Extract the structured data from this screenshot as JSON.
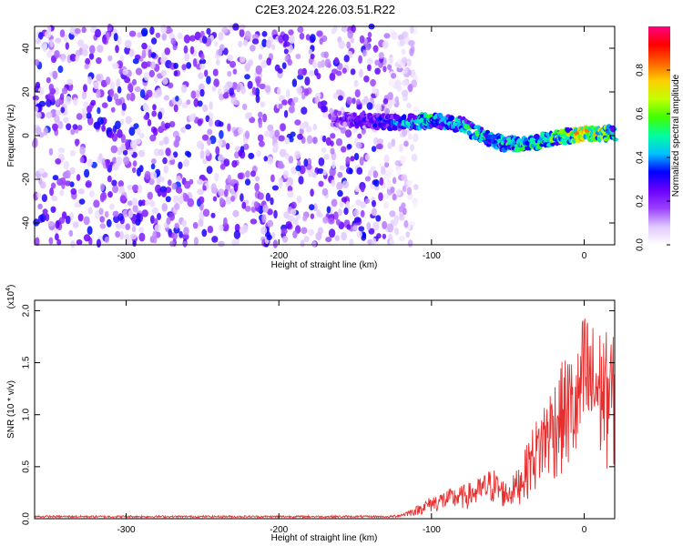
{
  "figure_title": "C2E3.2024.226.03.51.R22",
  "chart_data": [
    {
      "type": "heatmap",
      "title": "",
      "xlabel": "Height of straight line (km)",
      "ylabel": "Frequency (Hz)",
      "xlim": [
        -360,
        20
      ],
      "ylim": [
        -50,
        50
      ],
      "xticks": [
        -300,
        -200,
        -100,
        0
      ],
      "yticks": [
        -40,
        -20,
        0,
        20,
        40
      ],
      "colorbar": {
        "label": "Normalized spectral amplitude",
        "range": [
          0,
          1
        ],
        "ticks": [
          0.0,
          0.2,
          0.4,
          0.6,
          0.8
        ],
        "tick_labels": [
          "0.0",
          "0.2",
          "0.4",
          "0.6",
          "0.8"
        ],
        "colors": [
          "#ffffff",
          "#e0c8ff",
          "#9a40ff",
          "#6a00ff",
          "#0000ff",
          "#00c0ff",
          "#00ffa0",
          "#40ff00",
          "#c0ff00",
          "#ffd000",
          "#ff6000",
          "#ff0000",
          "#ff0080"
        ]
      },
      "noise_region_km": [
        -360,
        -115
      ],
      "noise_amplitude": [
        0.05,
        0.35
      ],
      "ridge": {
        "x": [
          -165,
          -150,
          -130,
          -115,
          -100,
          -90,
          -80,
          -70,
          -60,
          -50,
          -40,
          -30,
          -20,
          -10,
          0,
          10,
          20
        ],
        "freq": [
          8,
          7,
          6,
          6,
          7,
          6,
          5,
          1,
          -2,
          -4,
          -4,
          -3,
          -1,
          0,
          1,
          1,
          1
        ],
        "amplitude": [
          0.25,
          0.3,
          0.35,
          0.45,
          0.55,
          0.45,
          0.5,
          0.55,
          0.45,
          0.5,
          0.6,
          0.55,
          0.6,
          0.65,
          0.8,
          0.7,
          0.55
        ]
      }
    },
    {
      "type": "line",
      "title": "",
      "xlabel": "Height of straight line (km)",
      "ylabel": "SNR (10 * v/v)",
      "y_multiplier_label": "(x10",
      "y_multiplier_exp": "4",
      "y_multiplier_close": ")",
      "xlim": [
        -360,
        20
      ],
      "ylim": [
        0,
        2.1
      ],
      "xticks": [
        -300,
        -200,
        -100,
        0
      ],
      "yticks": [
        0.0,
        0.5,
        1.0,
        1.5,
        2.0
      ],
      "ytick_labels": [
        "0.0",
        "0.5",
        "1.0",
        "1.5",
        "2.0"
      ],
      "line_color": "#e53030",
      "envelope_x": [
        -360,
        -130,
        -120,
        -110,
        -100,
        -90,
        -80,
        -70,
        -60,
        -55,
        -50,
        -45,
        -40,
        -35,
        -30,
        -25,
        -20,
        -15,
        -10,
        -5,
        0,
        5,
        10,
        15,
        20
      ],
      "envelope_y": [
        0.02,
        0.02,
        0.05,
        0.12,
        0.22,
        0.28,
        0.32,
        0.38,
        0.5,
        0.4,
        0.35,
        0.45,
        0.6,
        0.85,
        1.0,
        1.2,
        1.35,
        1.5,
        1.6,
        1.55,
        2.05,
        1.9,
        1.85,
        1.8,
        1.75
      ]
    }
  ]
}
